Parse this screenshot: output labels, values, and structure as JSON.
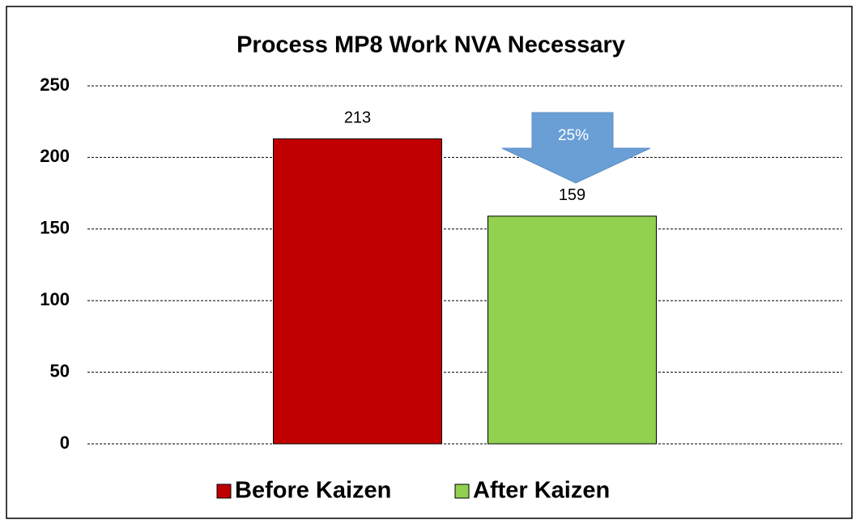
{
  "chart_data": {
    "type": "bar",
    "title": "Process MP8 Work NVA Necessary",
    "categories": [
      null
    ],
    "series": [
      {
        "name": "Before Kaizen",
        "color": "#c00000",
        "values": [
          213
        ]
      },
      {
        "name": "After Kaizen",
        "color": "#92d050",
        "values": [
          159
        ]
      }
    ],
    "annotations": [
      "25%"
    ],
    "ylim": [
      0,
      250
    ],
    "yticks": [
      0,
      50,
      100,
      150,
      200,
      250
    ],
    "grid": true,
    "legend": "bottom"
  }
}
